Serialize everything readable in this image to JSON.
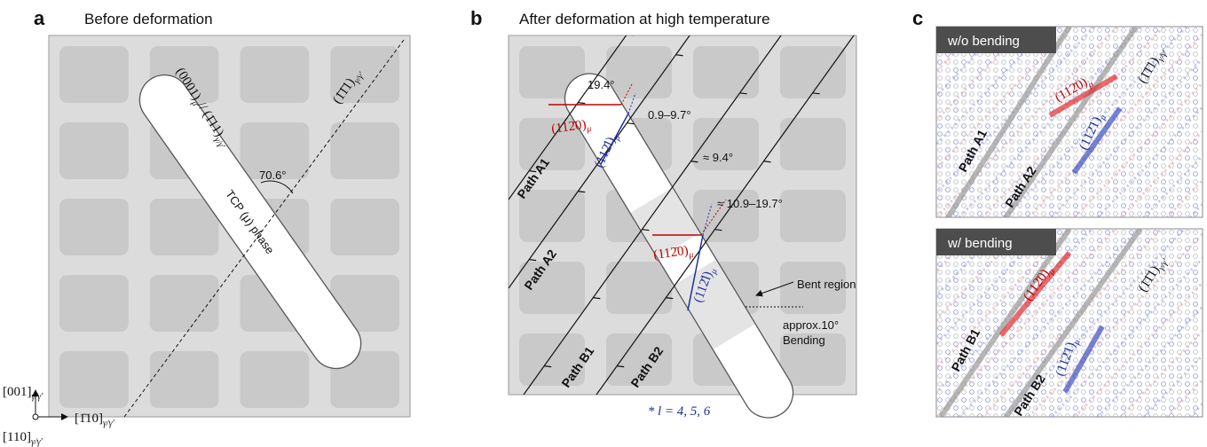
{
  "axes": {
    "up": [
      "[001]",
      "γ/γ′"
    ],
    "right": [
      "[1̄10]",
      "γ/γ′"
    ],
    "out": [
      "[110]",
      "γ/γ′"
    ]
  },
  "panel_a": {
    "letter": "a",
    "title": "Before deformation",
    "phase_plane": [
      "(0001)",
      "μ",
      "// (1̄11)",
      "γ/γ′"
    ],
    "matrix_plane": [
      "(1̄1̄1)",
      "γ/γ′"
    ],
    "angle": "70.6°",
    "phase_label": "TCP (μ) phase"
  },
  "panel_b": {
    "letter": "b",
    "title": "After deformation at high temperature",
    "angles": [
      "19.4°",
      "0.9–9.7°",
      "≈ 9.4°",
      "≈ 10.9–19.7°"
    ],
    "planes_upper": [
      [
        "(112̄0)",
        "μ"
      ],
      [
        "(112̄l)",
        "μ"
      ]
    ],
    "planes_lower": [
      [
        "(112̄0)",
        "μ"
      ],
      [
        "(112̄l)",
        "μ"
      ]
    ],
    "bent_region": "Bent region",
    "bending": [
      "approx.10°",
      "Bending"
    ],
    "paths": [
      "Path A1",
      "Path A2",
      "Path B1",
      "Path B2"
    ],
    "footnote": "* l = 4, 5, 6"
  },
  "panel_c": {
    "letter": "c",
    "top": {
      "header": "w/o bending",
      "plane_red": [
        "(112̄0)",
        "μ"
      ],
      "plane_blue": [
        "(112̄1)",
        "μ"
      ],
      "matrix_plane": [
        "(1̄1̄1)",
        "γ/γ′"
      ],
      "paths": [
        "Path A1",
        "Path A2"
      ]
    },
    "bottom": {
      "header": "w/ bending",
      "plane_red": [
        "(112̄0)",
        "μ"
      ],
      "plane_blue": [
        "(112̄1)",
        "μ"
      ],
      "matrix_plane": [
        "(1̄1̄1)",
        "γ/γ′"
      ],
      "paths": [
        "Path B1",
        "Path B2"
      ]
    }
  }
}
